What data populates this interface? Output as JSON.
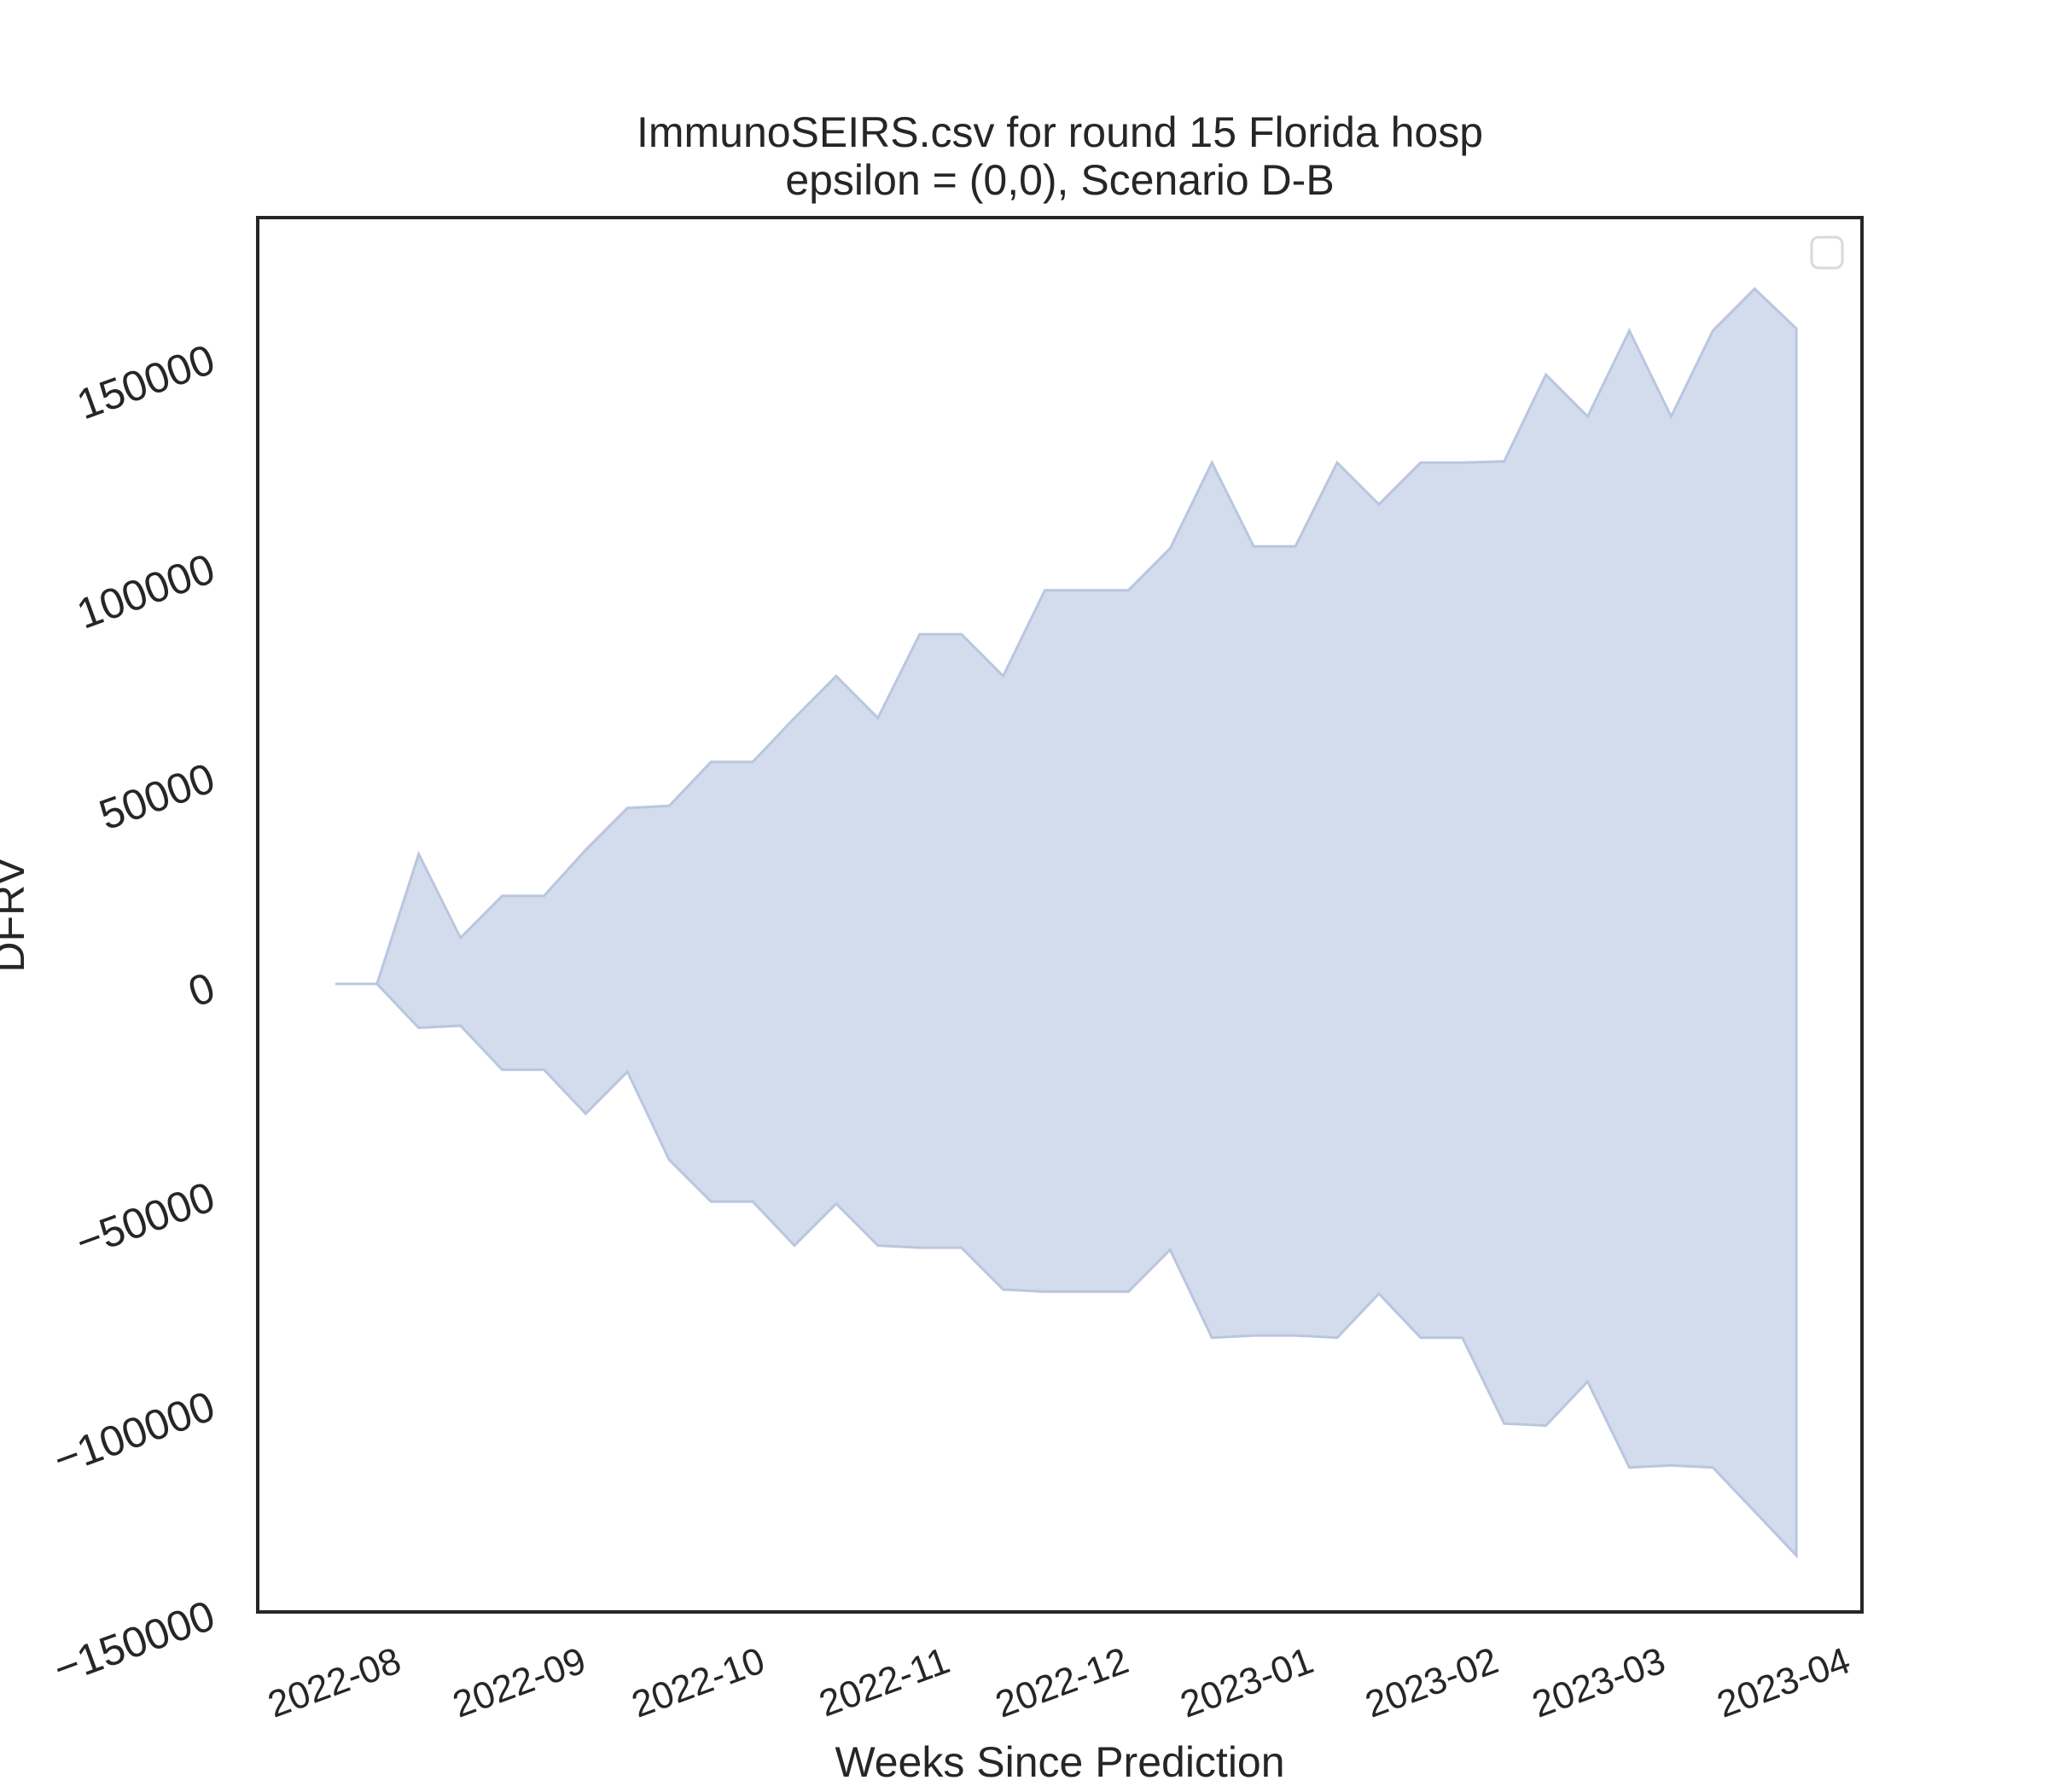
{
  "chart_data": {
    "type": "area",
    "title": "ImmunoSEIRS.csv for round 15 Florida hosp",
    "subtitle": "epsilon = (0,0), Scenario D-B",
    "xlabel": "Weeks Since Prediction",
    "ylabel": "DFRV",
    "x_ticks": [
      "2022-08",
      "2022-09",
      "2022-10",
      "2022-11",
      "2022-12",
      "2023-01",
      "2023-02",
      "2023-03",
      "2023-04"
    ],
    "y_ticks": [
      -150000,
      -100000,
      -50000,
      0,
      50000,
      100000,
      150000
    ],
    "xlim": [
      "2022-07-09",
      "2023-04-04"
    ],
    "ylim": [
      -150000,
      183000
    ],
    "grid": false,
    "legend": {
      "placement": "top-right",
      "entries": []
    },
    "colors": {
      "fill": "#d3dcec",
      "edge": "#b9c6df",
      "axes": "#262626"
    },
    "series": [
      {
        "x": [
          "2022-07-22",
          "2022-07-29",
          "2022-08-05",
          "2022-08-12",
          "2022-08-19",
          "2022-08-26",
          "2022-09-02",
          "2022-09-09",
          "2022-09-16",
          "2022-09-23",
          "2022-09-30",
          "2022-10-07",
          "2022-10-14",
          "2022-10-21",
          "2022-10-28",
          "2022-11-04",
          "2022-11-11",
          "2022-11-18",
          "2022-11-25",
          "2022-12-02",
          "2022-12-09",
          "2022-12-16",
          "2022-12-23",
          "2022-12-30",
          "2023-01-06",
          "2023-01-13",
          "2023-01-20",
          "2023-01-27",
          "2023-02-03",
          "2023-02-10",
          "2023-02-17",
          "2023-02-24",
          "2023-03-03",
          "2023-03-10",
          "2023-03-17",
          "2023-03-24"
        ],
        "upper": [
          0,
          0,
          31000,
          11000,
          21000,
          21000,
          32000,
          42000,
          42500,
          53000,
          53000,
          63500,
          73500,
          63500,
          83500,
          83500,
          73500,
          94000,
          94000,
          94000,
          104000,
          124500,
          104500,
          104500,
          124500,
          114500,
          124500,
          124500,
          124800,
          145500,
          135500,
          156000,
          135500,
          156000,
          166000,
          156500
        ],
        "lower": [
          0,
          0,
          -10500,
          -10000,
          -20500,
          -20500,
          -31000,
          -21000,
          -42000,
          -52000,
          -52000,
          -62500,
          -52500,
          -62500,
          -63000,
          -63000,
          -73000,
          -73500,
          -73500,
          -73500,
          -63500,
          -84500,
          -84000,
          -84000,
          -84500,
          -74000,
          -84500,
          -84500,
          -105000,
          -105500,
          -95000,
          -115500,
          -115000,
          -115500,
          -126000,
          -136500
        ]
      }
    ]
  }
}
